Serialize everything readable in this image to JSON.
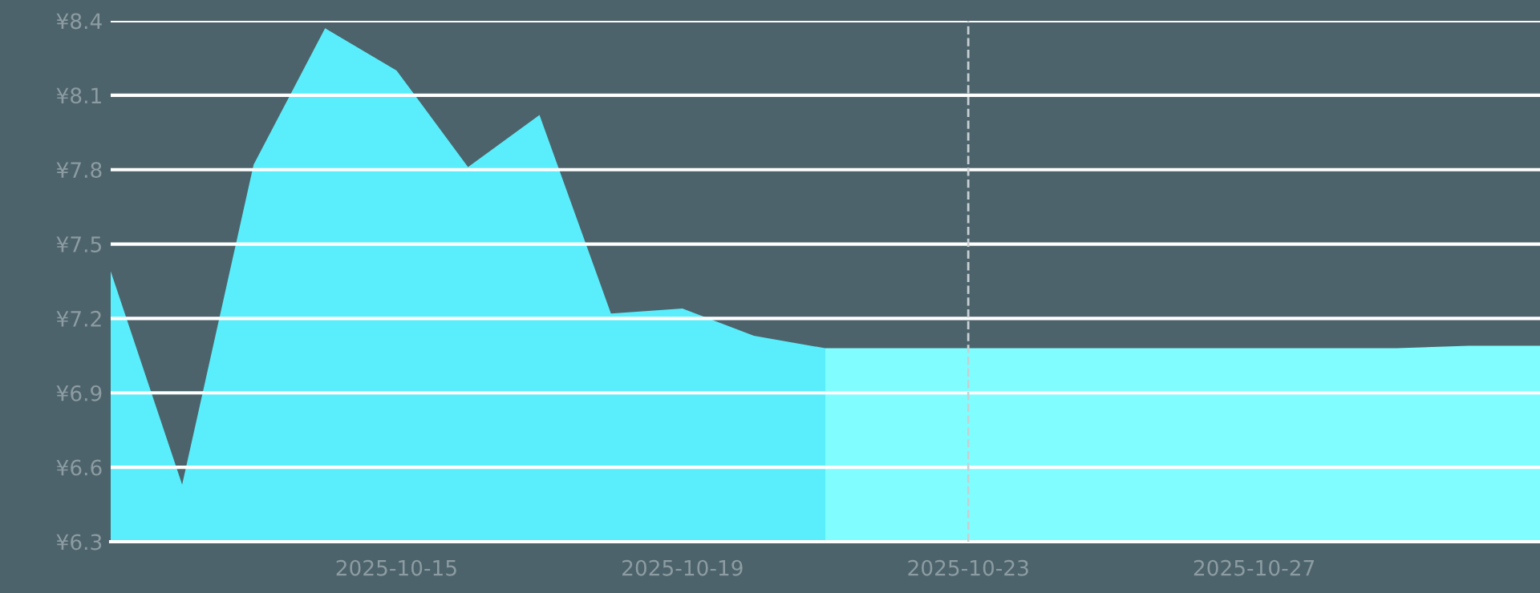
{
  "chart_data": {
    "type": "area",
    "series": [
      {
        "color": "#5aeefc",
        "x": [
          "2025-10-11",
          "2025-10-12",
          "2025-10-13",
          "2025-10-14",
          "2025-10-15",
          "2025-10-16",
          "2025-10-17",
          "2025-10-18",
          "2025-10-19",
          "2025-10-20",
          "2025-10-21"
        ],
        "values": [
          7.39,
          6.53,
          7.82,
          8.37,
          8.2,
          7.81,
          8.02,
          7.22,
          7.24,
          7.13,
          7.08
        ]
      },
      {
        "color": "#80feff",
        "x": [
          "2025-10-21",
          "2025-10-22",
          "2025-10-23",
          "2025-10-24",
          "2025-10-25",
          "2025-10-26",
          "2025-10-27",
          "2025-10-28",
          "2025-10-29",
          "2025-10-30",
          "2025-10-31"
        ],
        "values": [
          7.08,
          7.08,
          7.08,
          7.08,
          7.08,
          7.08,
          7.08,
          7.08,
          7.08,
          7.09,
          7.09
        ]
      }
    ],
    "xlim": [
      "2025-10-11",
      "2025-10-31"
    ],
    "xticks": [
      "2025-10-15",
      "2025-10-19",
      "2025-10-23",
      "2025-10-27"
    ],
    "ylim": [
      6.3,
      8.4
    ],
    "yticks": [
      {
        "value": 6.3,
        "label": "¥6.3"
      },
      {
        "value": 6.6,
        "label": "¥6.6"
      },
      {
        "value": 6.9,
        "label": "¥6.9"
      },
      {
        "value": 7.2,
        "label": "¥7.2"
      },
      {
        "value": 7.5,
        "label": "¥7.5"
      },
      {
        "value": 7.8,
        "label": "¥7.8"
      },
      {
        "value": 8.1,
        "label": "¥8.1"
      },
      {
        "value": 8.4,
        "label": "¥8.4"
      }
    ],
    "grid": "y",
    "ref_lines": [
      {
        "axis": "x",
        "value": "2025-10-23",
        "color": "#c8d0d4",
        "line_style": "dashed"
      }
    ]
  }
}
